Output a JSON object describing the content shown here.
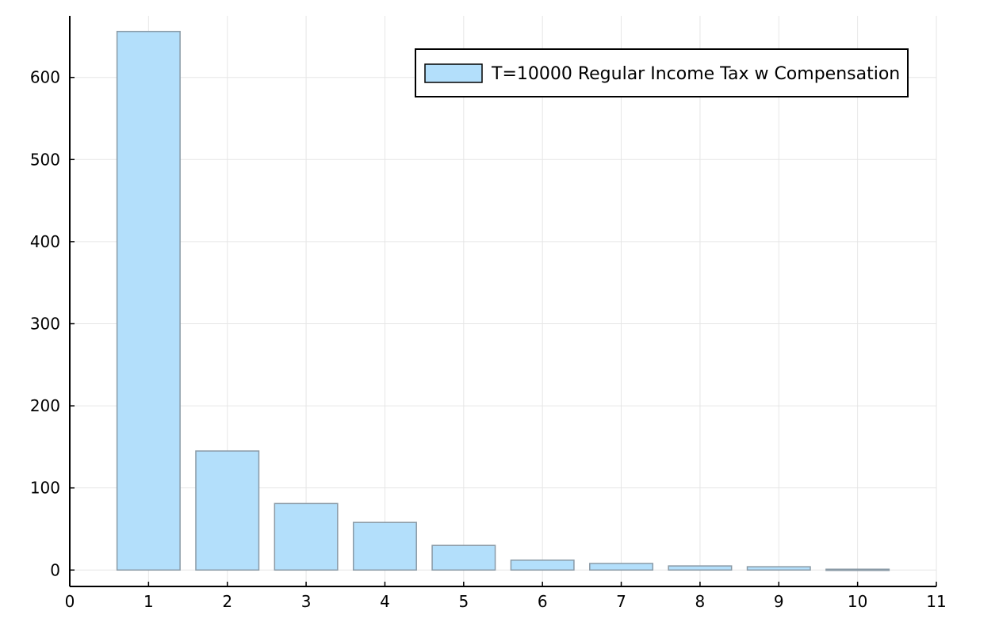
{
  "chart_data": {
    "type": "bar",
    "title": "",
    "xlabel": "",
    "ylabel": "",
    "xlim": [
      0,
      11
    ],
    "ylim": [
      -20,
      675
    ],
    "x_ticks": [
      "0",
      "1",
      "2",
      "3",
      "4",
      "5",
      "6",
      "7",
      "8",
      "9",
      "10",
      "11"
    ],
    "y_ticks": [
      "0",
      "100",
      "200",
      "300",
      "400",
      "500",
      "600"
    ],
    "grid": true,
    "legend_position": "top-right",
    "series": [
      {
        "name": "T=10000 Regular Income Tax w Compensation",
        "color": "#b3dffb",
        "edge_color": "#8a9aa6",
        "x": [
          1,
          2,
          3,
          4,
          5,
          6,
          7,
          8,
          9,
          10
        ],
        "values": [
          656,
          145,
          81,
          58,
          30,
          12,
          8,
          5,
          4,
          1
        ]
      }
    ]
  }
}
